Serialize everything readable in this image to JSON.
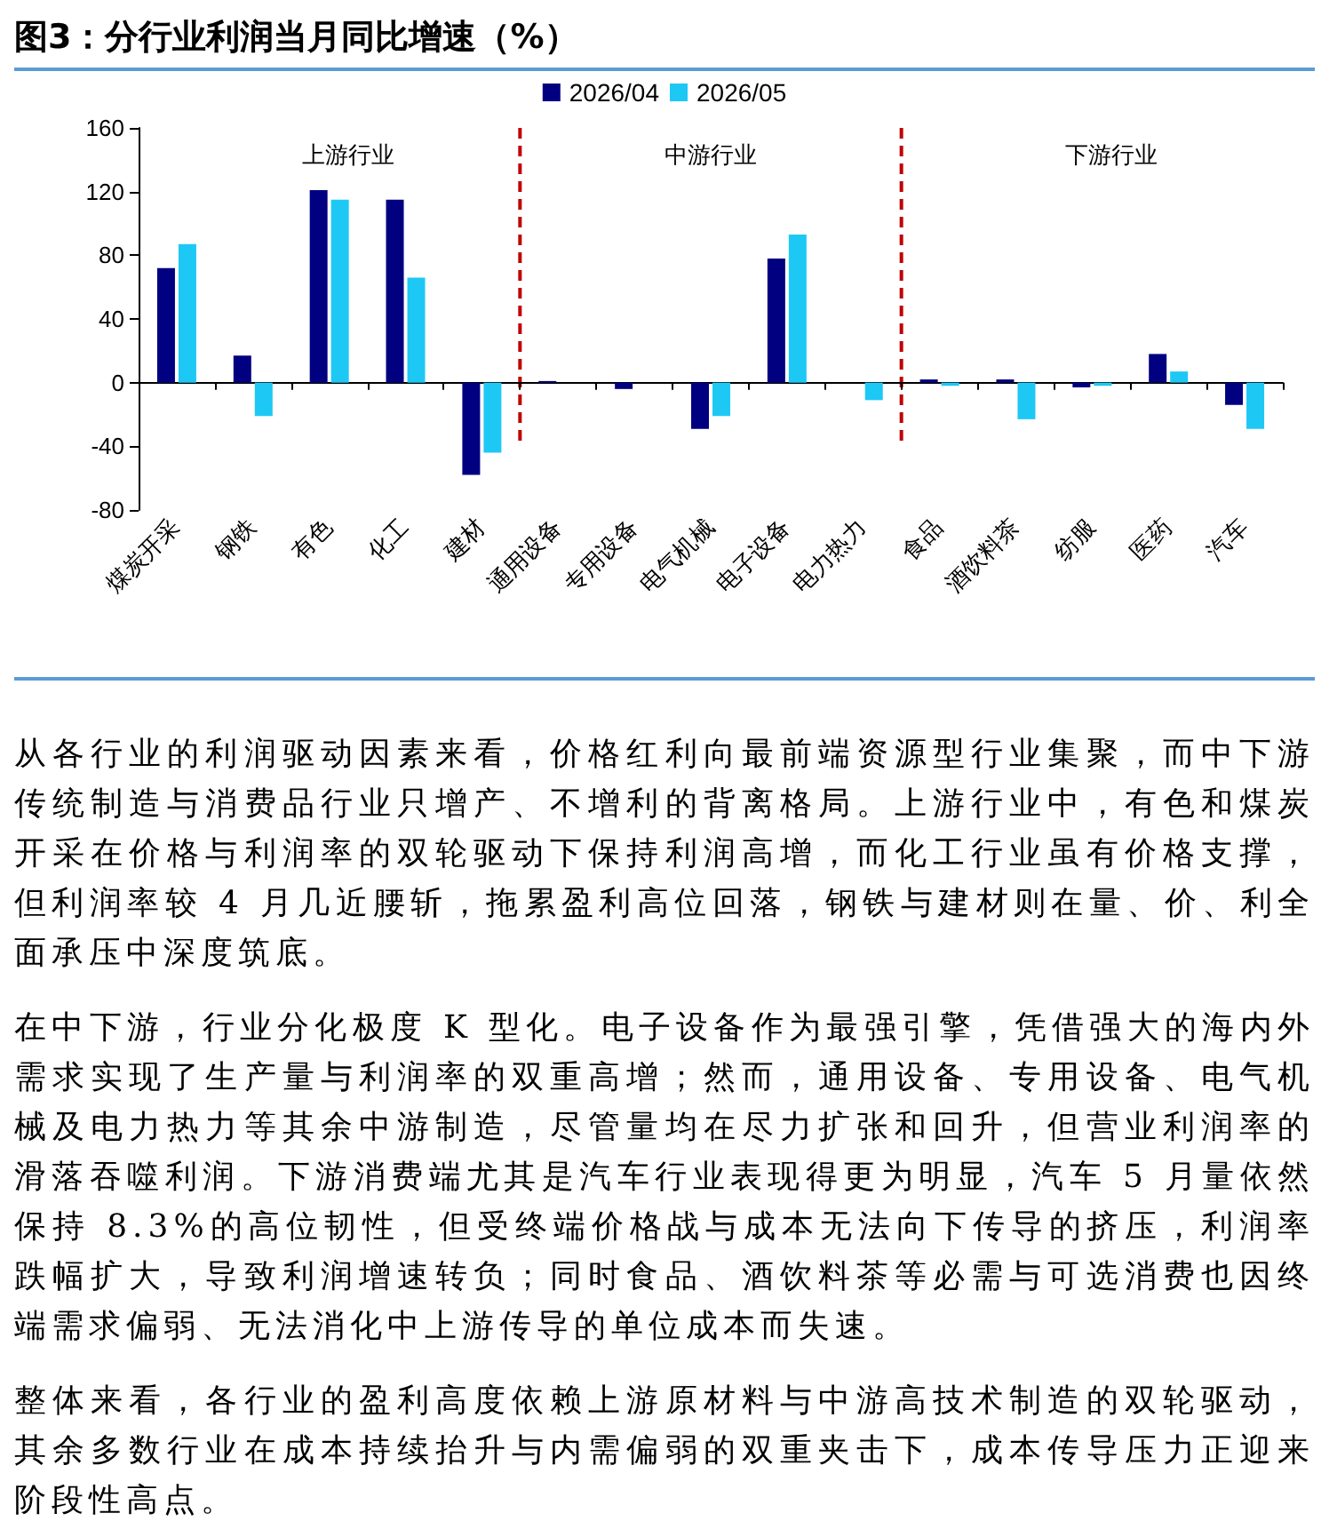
{
  "chart_data": {
    "type": "bar",
    "title": "图3：分行业利润当月同比增速（%）",
    "categories": [
      "煤炭开采",
      "钢铁",
      "有色",
      "化工",
      "建材",
      "通用设备",
      "专用设备",
      "电气机械",
      "电子设备",
      "电力热力",
      "食品",
      "酒饮料茶",
      "纺服",
      "医药",
      "汽车"
    ],
    "series": [
      {
        "name": "2026/04",
        "color": "#000080",
        "values": [
          72,
          17,
          121,
          115,
          -58,
          1,
          -4,
          -29,
          78,
          0,
          2,
          2,
          -3,
          18,
          -14
        ]
      },
      {
        "name": "2026/05",
        "color": "#1ec8f5",
        "values": [
          87,
          -21,
          115,
          66,
          -44,
          0,
          0,
          -21,
          93,
          -11,
          -2,
          -23,
          -2,
          7,
          -29
        ]
      }
    ],
    "ylim": [
      -80,
      160
    ],
    "yticks": [
      -80,
      -40,
      0,
      40,
      80,
      120,
      160
    ],
    "legend": "top",
    "ref_lines": [
      {
        "axis": "x",
        "value": "通用设备",
        "color": "#c00000",
        "line_style": "dashed"
      },
      {
        "axis": "x",
        "value": "食品",
        "color": "#c00000",
        "line_style": "dashed"
      }
    ],
    "annotations": [
      "上游行业",
      "中游行业",
      "下游行业",
      "从各行业的利润驱动因素来看，价格红利向最前端资源型行业集聚，而中下游传统制造与消费品行业只增产、不增利的背离格局。上游行业中，有色和煤炭开采在价格与利润率的双轮驱动下保持利润高增，而化工行业虽有价格支撑，但利润率较 4 月几近腰斩，拖累盈利高位回落，钢铁与建材则在量、价、利全面承压中深度筑底。",
      "在中下游，行业分化极度 K 型化。电子设备作为最强引擎，凭借强大的海内外需求实现了生产量与利润率的双重高增；然而，通用设备、专用设备、电气机械及电力热力等其余中游制造，尽管量均在尽力扩张和回升，但营业利润率的滑落吞噬利润。下游消费端尤其是汽车行业表现得更为明显，汽车 5 月量依然保持 8.3%的高位韧性，但受终端价格战与成本无法向下传导的挤压，利润率跌幅扩大，导致利润增速转负；同时食品、酒饮料茶等必需与可选消费也因终端需求偏弱、无法消化中上游传导的单位成本而失速。",
      "整体来看，各行业的盈利高度依赖上游原材料与中游高技术制造的双轮驱动，其余多数行业在成本持续抬升与内需偏弱的双重夹击下，成本传导压力正迎来阶段性高点。"
    ]
  }
}
